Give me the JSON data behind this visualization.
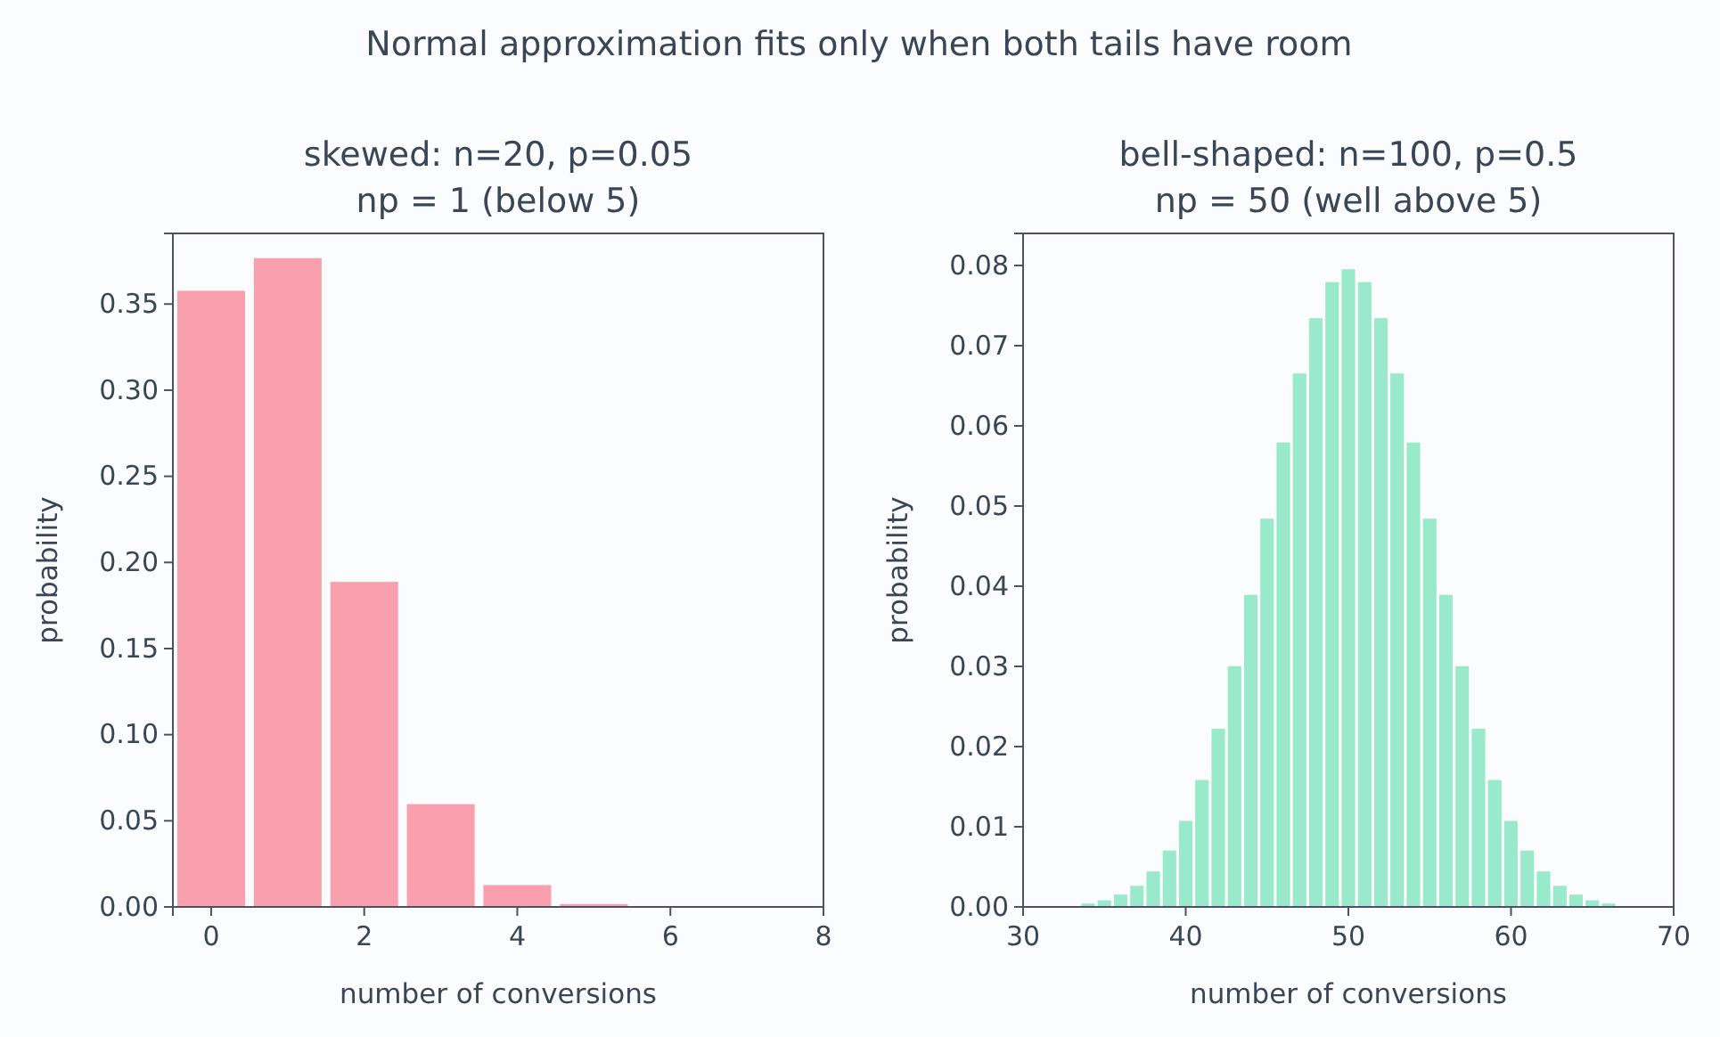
{
  "chart_data": [
    {
      "type": "bar",
      "title": "skewed: n=20, p=0.05\nnp = 1 (below 5)",
      "xlabel": "number of conversions",
      "ylabel": "probability",
      "annotations": [
        "Normal approximation fits only when both tails have room"
      ],
      "x": [
        0,
        1,
        2,
        3,
        4,
        5
      ],
      "series": [
        {
          "color": "#f99fae",
          "values": [
            0.358,
            0.377,
            0.189,
            0.06,
            0.013,
            0.002
          ]
        }
      ],
      "xlim": [
        -0.5,
        8
      ],
      "ylim": [
        0,
        0.391
      ],
      "xticks": [
        0,
        2,
        4,
        6,
        8
      ],
      "yticks": [
        {
          "value": 0,
          "label": "0.00"
        },
        {
          "value": 0.05,
          "label": "0.05"
        },
        {
          "value": 0.1,
          "label": "0.10"
        },
        {
          "value": 0.15,
          "label": "0.15"
        },
        {
          "value": 0.2,
          "label": "0.20"
        },
        {
          "value": 0.25,
          "label": "0.25"
        },
        {
          "value": 0.3,
          "label": "0.30"
        },
        {
          "value": 0.35,
          "label": "0.35"
        }
      ],
      "grid": false
    },
    {
      "type": "bar",
      "title": "bell-shaped: n=100, p=0.5\nnp = 50 (well above 5)",
      "xlabel": "number of conversions",
      "ylabel": "probability",
      "x": [
        34,
        35,
        36,
        37,
        38,
        39,
        40,
        41,
        42,
        43,
        44,
        45,
        46,
        47,
        48,
        49,
        50,
        51,
        52,
        53,
        54,
        55,
        56,
        57,
        58,
        59,
        60,
        61,
        62,
        63,
        64,
        65,
        66
      ],
      "series": [
        {
          "color": "#98eacb",
          "values": [
            0.0005,
            0.0009,
            0.0016,
            0.0027,
            0.0045,
            0.0071,
            0.0108,
            0.0159,
            0.0223,
            0.0301,
            0.039,
            0.0485,
            0.058,
            0.0666,
            0.0735,
            0.078,
            0.0796,
            0.078,
            0.0735,
            0.0666,
            0.058,
            0.0485,
            0.039,
            0.0301,
            0.0223,
            0.0159,
            0.0108,
            0.0071,
            0.0045,
            0.0027,
            0.0016,
            0.0009,
            0.0005
          ]
        }
      ],
      "xlim": [
        30,
        70
      ],
      "ylim": [
        0,
        0.084
      ],
      "xticks": [
        30,
        40,
        50,
        60,
        70
      ],
      "yticks": [
        {
          "value": 0,
          "label": "0.00"
        },
        {
          "value": 0.01,
          "label": "0.01"
        },
        {
          "value": 0.02,
          "label": "0.02"
        },
        {
          "value": 0.03,
          "label": "0.03"
        },
        {
          "value": 0.04,
          "label": "0.04"
        },
        {
          "value": 0.05,
          "label": "0.05"
        },
        {
          "value": 0.06,
          "label": "0.06"
        },
        {
          "value": 0.07,
          "label": "0.07"
        },
        {
          "value": 0.08,
          "label": "0.08"
        }
      ],
      "grid": false
    }
  ]
}
